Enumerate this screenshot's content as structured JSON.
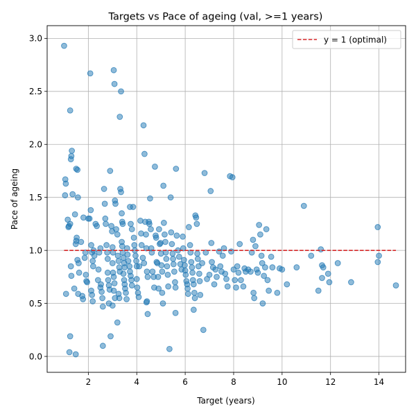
{
  "chart_data": {
    "type": "scatter",
    "title": "Targets vs Pace of ageing (val, >=1 years)",
    "xlabel": "Target (years)",
    "ylabel": "Pace of ageing",
    "xlim": [
      0.3,
      15.1
    ],
    "ylim": [
      -0.15,
      3.12
    ],
    "xticks": [
      2,
      4,
      6,
      8,
      10,
      12,
      14
    ],
    "yticks": [
      0.0,
      0.5,
      1.0,
      1.5,
      2.0,
      2.5,
      3.0
    ],
    "ytick_labels": [
      "0.0",
      "0.5",
      "1.0",
      "1.5",
      "2.0",
      "2.5",
      "3.0"
    ],
    "grid": true,
    "legend_position": "top-right",
    "point_color": "#1f77b4",
    "reference_line": {
      "name": "y = 1 (optimal)",
      "y": 1.0,
      "x_range": [
        1.0,
        14.7
      ],
      "color": "#d62728",
      "style": "dashed"
    },
    "points": [
      [
        1.0,
        2.93
      ],
      [
        1.05,
        1.67
      ],
      [
        1.07,
        1.63
      ],
      [
        1.04,
        1.52
      ],
      [
        1.08,
        0.59
      ],
      [
        1.15,
        1.29
      ],
      [
        1.18,
        1.22
      ],
      [
        1.2,
        1.23
      ],
      [
        1.25,
        1.25
      ],
      [
        1.28,
        1.86
      ],
      [
        1.3,
        1.89
      ],
      [
        1.32,
        1.94
      ],
      [
        1.35,
        1.53
      ],
      [
        1.25,
        2.32
      ],
      [
        1.28,
        0.85
      ],
      [
        1.3,
        0.76
      ],
      [
        1.25,
        0.19
      ],
      [
        1.22,
        0.04
      ],
      [
        1.48,
        0.02
      ],
      [
        1.42,
        0.64
      ],
      [
        1.45,
        1.34
      ],
      [
        1.5,
        1.77
      ],
      [
        1.55,
        1.76
      ],
      [
        1.57,
        1.5
      ],
      [
        1.5,
        1.09
      ],
      [
        1.52,
        1.12
      ],
      [
        1.48,
        1.06
      ],
      [
        1.55,
        0.91
      ],
      [
        1.6,
        0.88
      ],
      [
        1.62,
        0.79
      ],
      [
        1.58,
        0.59
      ],
      [
        1.7,
        1.08
      ],
      [
        1.75,
        0.57
      ],
      [
        1.78,
        0.54
      ],
      [
        1.8,
        1.31
      ],
      [
        1.85,
        0.93
      ],
      [
        1.88,
        0.98
      ],
      [
        1.9,
        0.77
      ],
      [
        1.92,
        0.71
      ],
      [
        1.95,
        0.7
      ],
      [
        2.0,
        1.3
      ],
      [
        2.05,
        1.3
      ],
      [
        2.08,
        2.67
      ],
      [
        2.1,
        1.38
      ],
      [
        2.12,
        1.05
      ],
      [
        2.15,
        0.98
      ],
      [
        2.18,
        0.9
      ],
      [
        2.2,
        0.85
      ],
      [
        2.12,
        0.62
      ],
      [
        2.15,
        0.58
      ],
      [
        2.18,
        0.52
      ],
      [
        2.22,
        1.0
      ],
      [
        2.25,
        0.95
      ],
      [
        2.3,
        1.25
      ],
      [
        2.35,
        1.23
      ],
      [
        2.4,
        0.72
      ],
      [
        2.42,
        0.82
      ],
      [
        2.45,
        0.98
      ],
      [
        2.5,
        1.02
      ],
      [
        2.5,
        0.65
      ],
      [
        2.52,
        0.68
      ],
      [
        2.55,
        0.61
      ],
      [
        2.58,
        0.55
      ],
      [
        2.6,
        0.47
      ],
      [
        2.6,
        0.1
      ],
      [
        2.65,
        1.58
      ],
      [
        2.68,
        1.44
      ],
      [
        2.7,
        1.3
      ],
      [
        2.72,
        1.25
      ],
      [
        2.75,
        1.05
      ],
      [
        2.78,
        0.98
      ],
      [
        2.8,
        0.92
      ],
      [
        2.8,
        0.79
      ],
      [
        2.82,
        0.72
      ],
      [
        2.85,
        0.67
      ],
      [
        2.88,
        0.63
      ],
      [
        2.85,
        0.5
      ],
      [
        2.9,
        1.75
      ],
      [
        2.92,
        0.19
      ],
      [
        2.95,
        1.23
      ],
      [
        2.98,
        1.18
      ],
      [
        3.0,
        1.03
      ],
      [
        3.02,
        0.98
      ],
      [
        3.0,
        0.88
      ],
      [
        3.02,
        0.79
      ],
      [
        3.05,
        0.75
      ],
      [
        3.08,
        0.69
      ],
      [
        3.05,
        0.62
      ],
      [
        3.1,
        0.55
      ],
      [
        3.0,
        0.48
      ],
      [
        3.05,
        2.7
      ],
      [
        3.08,
        2.57
      ],
      [
        3.1,
        1.47
      ],
      [
        3.12,
        1.44
      ],
      [
        3.15,
        1.2
      ],
      [
        3.2,
        1.15
      ],
      [
        3.22,
        0.95
      ],
      [
        3.25,
        0.9
      ],
      [
        3.28,
        0.84
      ],
      [
        3.3,
        0.8
      ],
      [
        3.25,
        0.59
      ],
      [
        3.28,
        0.55
      ],
      [
        3.2,
        0.32
      ],
      [
        3.3,
        2.26
      ],
      [
        3.35,
        2.5
      ],
      [
        3.32,
        1.58
      ],
      [
        3.35,
        1.55
      ],
      [
        3.38,
        1.35
      ],
      [
        3.4,
        1.27
      ],
      [
        3.42,
        1.25
      ],
      [
        3.38,
        1.08
      ],
      [
        3.4,
        1.04
      ],
      [
        3.42,
        0.98
      ],
      [
        3.45,
        0.93
      ],
      [
        3.48,
        0.88
      ],
      [
        3.5,
        0.84
      ],
      [
        3.45,
        0.78
      ],
      [
        3.48,
        0.72
      ],
      [
        3.5,
        0.68
      ],
      [
        3.52,
        0.64
      ],
      [
        3.55,
        0.6
      ],
      [
        3.58,
        0.54
      ],
      [
        3.6,
        1.02
      ],
      [
        3.62,
        0.96
      ],
      [
        3.65,
        0.9
      ],
      [
        3.7,
        0.85
      ],
      [
        3.72,
        0.8
      ],
      [
        3.75,
        0.76
      ],
      [
        3.78,
        0.72
      ],
      [
        3.8,
        0.67
      ],
      [
        3.72,
        1.41
      ],
      [
        3.75,
        1.25
      ],
      [
        3.8,
        1.2
      ],
      [
        3.85,
        1.41
      ],
      [
        3.88,
        1.12
      ],
      [
        3.9,
        1.05
      ],
      [
        3.92,
        1.0
      ],
      [
        3.95,
        0.95
      ],
      [
        3.98,
        0.9
      ],
      [
        4.0,
        0.85
      ],
      [
        4.0,
        0.73
      ],
      [
        4.02,
        0.65
      ],
      [
        4.05,
        0.6
      ],
      [
        4.08,
        0.56
      ],
      [
        4.1,
        0.85
      ],
      [
        4.15,
        1.28
      ],
      [
        4.18,
        1.16
      ],
      [
        4.2,
        1.05
      ],
      [
        4.25,
        0.93
      ],
      [
        4.3,
        0.88
      ],
      [
        4.28,
        2.18
      ],
      [
        4.32,
        1.91
      ],
      [
        4.35,
        1.27
      ],
      [
        4.38,
        1.15
      ],
      [
        4.4,
        1.02
      ],
      [
        4.42,
        0.8
      ],
      [
        4.45,
        0.75
      ],
      [
        4.4,
        0.51
      ],
      [
        4.42,
        0.52
      ],
      [
        4.45,
        0.4
      ],
      [
        4.5,
        1.27
      ],
      [
        4.52,
        1.25
      ],
      [
        4.55,
        1.49
      ],
      [
        4.58,
        1.2
      ],
      [
        4.6,
        1.02
      ],
      [
        4.62,
        0.98
      ],
      [
        4.65,
        0.8
      ],
      [
        4.7,
        0.75
      ],
      [
        4.72,
        0.65
      ],
      [
        4.75,
        1.79
      ],
      [
        4.78,
        1.14
      ],
      [
        4.8,
        1.12
      ],
      [
        4.82,
        0.89
      ],
      [
        4.85,
        0.88
      ],
      [
        4.88,
        0.75
      ],
      [
        4.9,
        0.64
      ],
      [
        4.92,
        1.2
      ],
      [
        4.95,
        1.06
      ],
      [
        4.98,
        1.07
      ],
      [
        5.0,
        0.97
      ],
      [
        5.02,
        0.86
      ],
      [
        5.05,
        0.8
      ],
      [
        5.05,
        0.6
      ],
      [
        5.08,
        0.5
      ],
      [
        5.1,
        1.61
      ],
      [
        5.12,
        1.26
      ],
      [
        5.15,
        1.15
      ],
      [
        5.18,
        1.08
      ],
      [
        5.2,
        0.98
      ],
      [
        5.22,
        0.92
      ],
      [
        5.25,
        0.85
      ],
      [
        5.28,
        0.77
      ],
      [
        5.3,
        0.66
      ],
      [
        5.35,
        0.07
      ],
      [
        5.4,
        1.5
      ],
      [
        5.42,
        1.17
      ],
      [
        5.45,
        1.06
      ],
      [
        5.48,
        0.97
      ],
      [
        5.5,
        0.92
      ],
      [
        5.52,
        0.87
      ],
      [
        5.55,
        0.8
      ],
      [
        5.58,
        0.7
      ],
      [
        5.6,
        0.65
      ],
      [
        5.62,
        1.77
      ],
      [
        5.65,
        1.14
      ],
      [
        5.6,
        0.41
      ],
      [
        5.7,
        1.0
      ],
      [
        5.75,
        0.94
      ],
      [
        5.8,
        0.87
      ],
      [
        5.85,
        0.82
      ],
      [
        5.9,
        1.13
      ],
      [
        5.92,
        1.02
      ],
      [
        5.95,
        0.91
      ],
      [
        5.98,
        0.86
      ],
      [
        6.0,
        0.81
      ],
      [
        6.02,
        0.77
      ],
      [
        6.05,
        0.71
      ],
      [
        6.08,
        0.68
      ],
      [
        6.1,
        0.64
      ],
      [
        6.12,
        0.59
      ],
      [
        6.15,
        1.22
      ],
      [
        6.2,
        1.05
      ],
      [
        6.22,
        0.98
      ],
      [
        6.25,
        0.89
      ],
      [
        6.28,
        0.84
      ],
      [
        6.3,
        0.79
      ],
      [
        6.32,
        0.72
      ],
      [
        6.35,
        0.68
      ],
      [
        6.38,
        0.6
      ],
      [
        6.4,
        0.55
      ],
      [
        6.35,
        0.44
      ],
      [
        6.42,
        1.33
      ],
      [
        6.45,
        1.31
      ],
      [
        6.48,
        1.25
      ],
      [
        6.5,
        0.97
      ],
      [
        6.52,
        0.92
      ],
      [
        6.55,
        0.85
      ],
      [
        6.58,
        0.78
      ],
      [
        6.6,
        0.71
      ],
      [
        6.62,
        0.58
      ],
      [
        6.7,
        0.88
      ],
      [
        6.75,
        0.25
      ],
      [
        6.8,
        1.73
      ],
      [
        6.85,
        0.98
      ],
      [
        6.9,
        0.73
      ],
      [
        7.0,
        0.77
      ],
      [
        7.05,
        1.56
      ],
      [
        7.08,
        1.07
      ],
      [
        7.1,
        0.89
      ],
      [
        7.15,
        0.84
      ],
      [
        7.2,
        0.68
      ],
      [
        7.25,
        0.82
      ],
      [
        7.3,
        0.75
      ],
      [
        7.4,
        0.99
      ],
      [
        7.45,
        0.85
      ],
      [
        7.5,
        0.8
      ],
      [
        7.55,
        0.95
      ],
      [
        7.6,
        1.02
      ],
      [
        7.65,
        0.78
      ],
      [
        7.7,
        0.73
      ],
      [
        7.75,
        0.66
      ],
      [
        7.85,
        1.7
      ],
      [
        7.9,
        0.99
      ],
      [
        7.95,
        1.69
      ],
      [
        8.0,
        0.82
      ],
      [
        8.05,
        0.72
      ],
      [
        8.1,
        0.65
      ],
      [
        8.15,
        0.85
      ],
      [
        8.2,
        0.79
      ],
      [
        8.25,
        1.06
      ],
      [
        8.3,
        0.72
      ],
      [
        8.4,
        0.66
      ],
      [
        8.45,
        0.83
      ],
      [
        8.5,
        0.8
      ],
      [
        8.6,
        0.82
      ],
      [
        8.7,
        0.8
      ],
      [
        8.75,
        0.98
      ],
      [
        8.8,
        1.1
      ],
      [
        8.82,
        0.6
      ],
      [
        8.85,
        0.55
      ],
      [
        8.9,
        1.04
      ],
      [
        8.95,
        0.82
      ],
      [
        9.0,
        0.79
      ],
      [
        9.05,
        1.24
      ],
      [
        9.1,
        1.15
      ],
      [
        9.15,
        0.95
      ],
      [
        9.18,
        0.88
      ],
      [
        9.2,
        0.5
      ],
      [
        9.25,
        0.76
      ],
      [
        9.3,
        0.84
      ],
      [
        9.35,
        1.2
      ],
      [
        9.4,
        0.72
      ],
      [
        9.45,
        0.62
      ],
      [
        9.55,
        0.94
      ],
      [
        9.6,
        0.84
      ],
      [
        9.8,
        0.6
      ],
      [
        9.9,
        0.83
      ],
      [
        10.0,
        0.82
      ],
      [
        10.2,
        0.68
      ],
      [
        10.6,
        0.84
      ],
      [
        10.9,
        1.42
      ],
      [
        11.2,
        0.95
      ],
      [
        11.5,
        0.62
      ],
      [
        11.6,
        1.01
      ],
      [
        11.65,
        0.86
      ],
      [
        11.7,
        0.84
      ],
      [
        11.65,
        0.74
      ],
      [
        11.9,
        0.78
      ],
      [
        11.95,
        0.7
      ],
      [
        12.3,
        0.88
      ],
      [
        12.85,
        0.7
      ],
      [
        13.95,
        1.22
      ],
      [
        13.95,
        0.89
      ],
      [
        14.0,
        0.95
      ],
      [
        14.7,
        0.67
      ]
    ]
  }
}
